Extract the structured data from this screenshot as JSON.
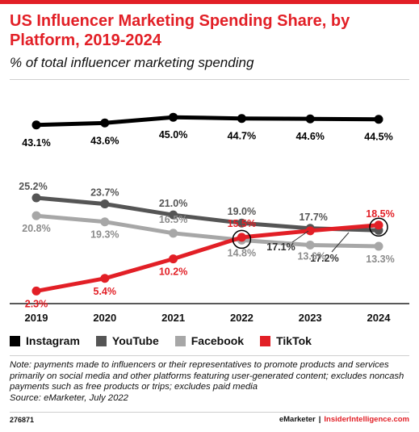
{
  "title": "US Influencer Marketing Spending Share, by Platform, 2019-2024",
  "subtitle": "% of total influencer marketing spending",
  "note": "Note: payments made to influencers or their representatives to promote products and services primarily on social media and other platforms featuring user-generated content; excludes noncash payments such as free products or trips; excludes paid media",
  "source": "Source: eMarketer, July 2022",
  "chart_id": "276871",
  "brand": "eMarketer",
  "brand_separator": "|",
  "brand_site": "InsiderIntelligence.com",
  "colors": {
    "accent": "#e21f26",
    "instagram": "#000000",
    "youtube": "#555555",
    "facebook": "#a7a7a7",
    "tiktok": "#e21f26"
  },
  "chart_data": {
    "type": "line",
    "x": [
      "2019",
      "2020",
      "2021",
      "2022",
      "2023",
      "2024"
    ],
    "ylim": [
      0,
      50
    ],
    "grid": false,
    "legend": "bottom",
    "series": [
      {
        "name": "Instagram",
        "values": [
          43.1,
          43.6,
          45.0,
          44.7,
          44.6,
          44.5
        ],
        "labels": [
          "43.1%",
          "43.6%",
          "45.0%",
          "44.7%",
          "44.6%",
          "44.5%"
        ]
      },
      {
        "name": "YouTube",
        "values": [
          25.2,
          23.7,
          21.0,
          19.0,
          17.7,
          17.2
        ],
        "labels": [
          "25.2%",
          "23.7%",
          "21.0%",
          "19.0%",
          "17.7%",
          "17.2%"
        ]
      },
      {
        "name": "Facebook",
        "values": [
          20.8,
          19.3,
          16.5,
          14.8,
          13.6,
          13.3
        ],
        "labels": [
          "20.8%",
          "19.3%",
          "16.5%",
          "14.8%",
          "13.6%",
          "13.3%"
        ]
      },
      {
        "name": "TikTok",
        "values": [
          2.3,
          5.4,
          10.2,
          15.5,
          17.1,
          18.5
        ],
        "labels": [
          "2.3%",
          "5.4%",
          "10.2%",
          "15.5%",
          "17.1%",
          "18.5%"
        ]
      }
    ],
    "highlights": [
      {
        "year": "2022",
        "value": 15.0
      },
      {
        "year": "2024",
        "value": 18.0
      }
    ]
  }
}
